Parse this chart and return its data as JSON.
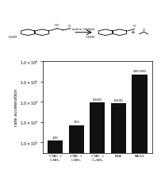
{
  "categories": [
    "CTAC +\nC₁NH₂",
    "CTAC +\nC₂NH₂",
    "CTAC +\nC₁₂NH₂",
    "BSA",
    "RA-61"
  ],
  "values": [
    120,
    710,
    9500,
    8500,
    230000
  ],
  "bar_color": "#111111",
  "bar_labels": [
    "120",
    "710",
    "9,500",
    "8,500",
    "230,000"
  ],
  "ylabel": "rate acceleration",
  "ylim_log": [
    30,
    1000000
  ],
  "yticks": [
    100,
    1000,
    10000,
    100000,
    1000000
  ],
  "background_color": "#ffffff"
}
